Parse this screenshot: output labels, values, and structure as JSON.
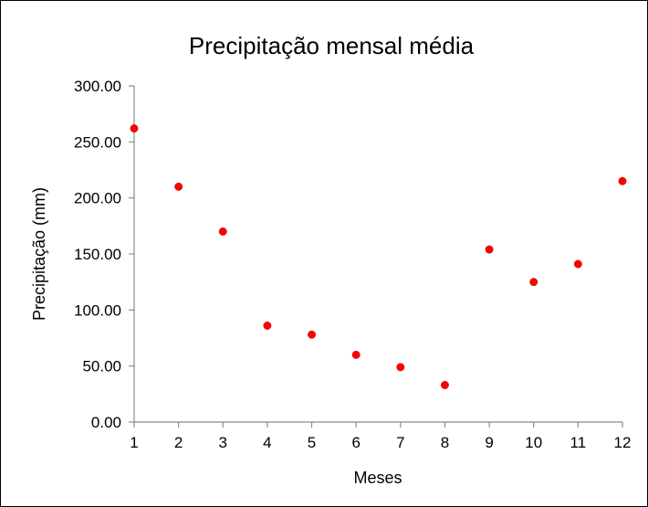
{
  "chart_data": {
    "type": "scatter",
    "title": "Precipitação mensal média",
    "xlabel": "Meses",
    "ylabel": "Precipitação (mm)",
    "xlim": [
      1,
      12
    ],
    "ylim": [
      0,
      300
    ],
    "x_ticks": [
      "1",
      "2",
      "3",
      "4",
      "5",
      "6",
      "7",
      "8",
      "9",
      "10",
      "11",
      "12"
    ],
    "y_ticks": [
      "0.00",
      "50.00",
      "100.00",
      "150.00",
      "200.00",
      "250.00",
      "300.00"
    ],
    "grid": false,
    "legend": "none",
    "marker_color": "#ff0000",
    "series": [
      {
        "x": [
          1,
          2,
          3,
          4,
          5,
          6,
          7,
          8,
          9,
          10,
          11,
          12
        ],
        "values": [
          262,
          210,
          170,
          86,
          78,
          60,
          49,
          33,
          154,
          125,
          141,
          215
        ]
      }
    ]
  }
}
